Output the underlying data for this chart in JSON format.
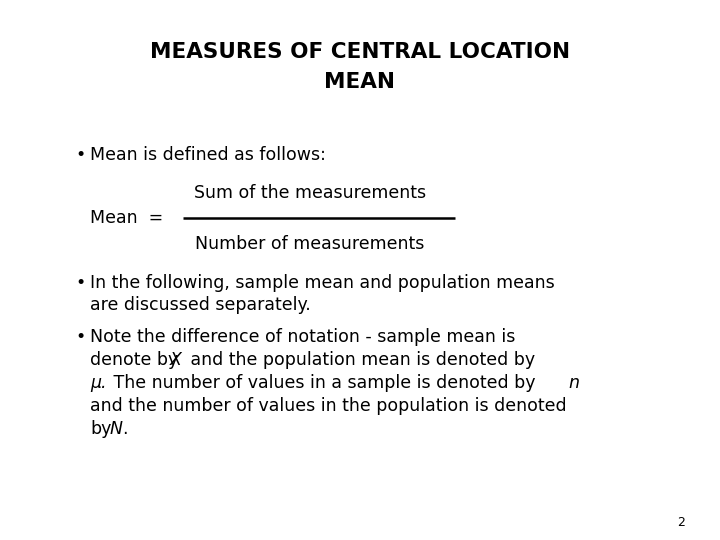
{
  "title_line1": "MEASURES OF CENTRAL LOCATION",
  "title_line2": "MEAN",
  "bg_color": "#ffffff",
  "text_color": "#000000",
  "title_fontsize": 15.5,
  "body_fontsize": 12.5,
  "italic_fontsize": 12.5,
  "page_number": "2",
  "font_family": "DejaVu Sans"
}
